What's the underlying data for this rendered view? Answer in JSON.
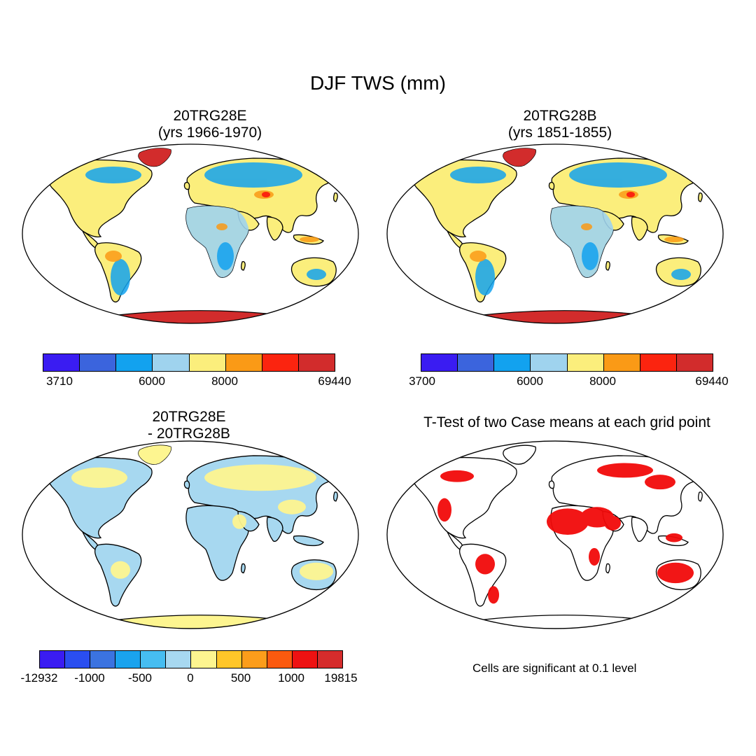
{
  "figure": {
    "title": "DJF TWS (mm)"
  },
  "panels": {
    "case_e": {
      "title": "20TRG28E",
      "subtitle": "(yrs 1966-1970)",
      "colorbar": {
        "colors": [
          "#3a1cf2",
          "#3b64dd",
          "#12a2ef",
          "#9fd3ee",
          "#fbee7c",
          "#fa9a16",
          "#fb240f",
          "#d22c2c"
        ],
        "ticks": [
          "3710",
          "6000",
          "8000",
          "69440"
        ]
      }
    },
    "case_b": {
      "title": "20TRG28B",
      "subtitle": "(yrs 1851-1855)",
      "colorbar": {
        "colors": [
          "#3a1cf2",
          "#3b64dd",
          "#12a2ef",
          "#9fd3ee",
          "#fbee7c",
          "#fa9a16",
          "#fb240f",
          "#d22c2c"
        ],
        "ticks": [
          "3700",
          "6000",
          "8000",
          "69440"
        ]
      }
    },
    "difference": {
      "title": "20TRG28E",
      "subtitle": "- 20TRG28B",
      "colorbar": {
        "colors": [
          "#3a1cf2",
          "#2a4ef0",
          "#3b73e0",
          "#1aa3ee",
          "#46bdf1",
          "#a7d8f0",
          "#fdf590",
          "#ffc629",
          "#fc9d1b",
          "#fb5a0f",
          "#ee1212",
          "#d52c2c"
        ],
        "ticks": [
          "-12932",
          "-1000",
          "-500",
          "0",
          "500",
          "1000",
          "19815"
        ]
      }
    },
    "ttest": {
      "title": "T-Test of two Case means at each grid point",
      "note": "Cells are significant at 0.1 level",
      "significant_color": "#f20a0a"
    }
  }
}
